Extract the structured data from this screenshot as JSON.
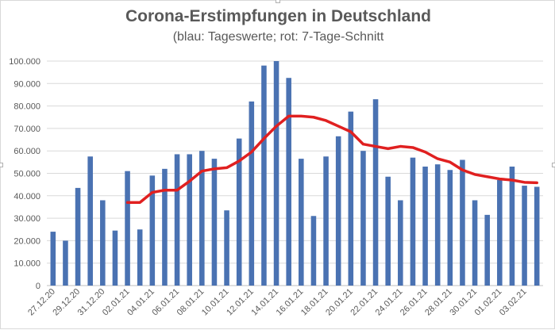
{
  "chart_data": {
    "type": "bar",
    "title": "Corona-Erstimpfungen in Deutschland",
    "subtitle": "(blau: Tageswerte; rot: 7-Tage-Schnitt",
    "ylim": [
      0,
      100000
    ],
    "yticks": [
      "0",
      "10.000",
      "20.000",
      "30.000",
      "40.000",
      "50.000",
      "60.000",
      "70.000",
      "80.000",
      "90.000",
      "100.000"
    ],
    "ytick_values": [
      0,
      10000,
      20000,
      30000,
      40000,
      50000,
      60000,
      70000,
      80000,
      90000,
      100000
    ],
    "grid": true,
    "categories": [
      "27.12.20",
      "28.12.20",
      "29.12.20",
      "30.12.20",
      "31.12.20",
      "01.01.21",
      "02.01.21",
      "03.01.21",
      "04.01.21",
      "05.01.21",
      "06.01.21",
      "07.01.21",
      "08.01.21",
      "09.01.21",
      "10.01.21",
      "11.01.21",
      "12.01.21",
      "13.01.21",
      "14.01.21",
      "15.01.21",
      "16.01.21",
      "17.01.21",
      "18.01.21",
      "19.01.21",
      "20.01.21",
      "21.01.21",
      "22.01.21",
      "23.01.21",
      "24.01.21",
      "25.01.21",
      "26.01.21",
      "27.01.21",
      "28.01.21",
      "29.01.21",
      "30.01.21",
      "31.01.21",
      "01.02.21",
      "02.02.21",
      "03.02.21",
      "04.02.21"
    ],
    "xtick_labels": [
      "27.12.20",
      "29.12.20",
      "31.12.20",
      "02.01.21",
      "04.01.21",
      "06.01.21",
      "08.01.21",
      "10.01.21",
      "12.01.21",
      "14.01.21",
      "16.01.21",
      "18.01.21",
      "20.01.21",
      "22.01.21",
      "24.01.21",
      "26.01.21",
      "28.01.21",
      "30.01.21",
      "01.02.21",
      "03.02.21"
    ],
    "series": [
      {
        "type": "bar",
        "color": "#4a72b2",
        "values": [
          24000,
          20000,
          43500,
          57500,
          38000,
          24500,
          51000,
          25000,
          49000,
          52000,
          58500,
          58500,
          60000,
          56500,
          33500,
          65500,
          82000,
          98000,
          100000,
          92500,
          56500,
          31000,
          57500,
          66500,
          77500,
          60000,
          83000,
          48500,
          38000,
          57000,
          53000,
          54000,
          51500,
          56000,
          38000,
          31500,
          47000,
          53000,
          44500,
          44000
        ]
      },
      {
        "type": "line",
        "color": "#e02020",
        "values": [
          null,
          null,
          null,
          null,
          null,
          null,
          37000,
          37000,
          41500,
          42500,
          42500,
          46500,
          51000,
          52000,
          52500,
          55500,
          59500,
          65500,
          71000,
          75500,
          75500,
          75000,
          73500,
          71000,
          68500,
          63000,
          62000,
          61000,
          62000,
          61500,
          59500,
          56500,
          55000,
          51500,
          49500,
          48500,
          47500,
          47000,
          46000,
          45800
        ]
      }
    ]
  }
}
